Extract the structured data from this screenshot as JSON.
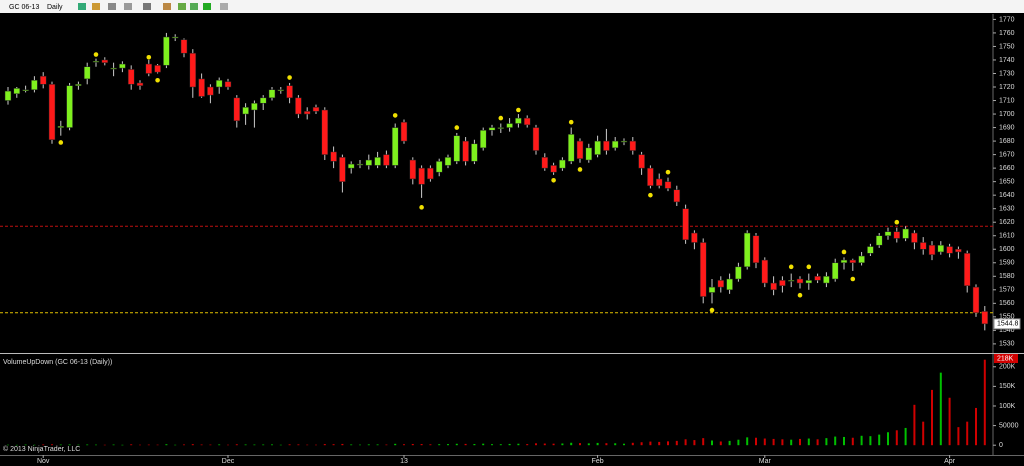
{
  "chart_data": {
    "type": "candlestick",
    "symbol": "GC 06-13",
    "interval": "Daily",
    "copyright": "© 2013 NinjaTrader, LLC",
    "categories": [
      null,
      null,
      null,
      null,
      "Nov",
      null,
      null,
      null,
      null,
      null,
      null,
      null,
      null,
      null,
      null,
      null,
      null,
      null,
      null,
      null,
      null,
      null,
      null,
      null,
      null,
      "Dec",
      null,
      null,
      null,
      null,
      null,
      null,
      null,
      null,
      null,
      null,
      null,
      null,
      null,
      null,
      null,
      null,
      null,
      null,
      null,
      "13",
      null,
      null,
      null,
      null,
      null,
      null,
      null,
      null,
      null,
      null,
      null,
      null,
      null,
      null,
      null,
      null,
      null,
      null,
      null,
      null,
      null,
      "Feb",
      null,
      null,
      null,
      null,
      null,
      null,
      null,
      null,
      null,
      null,
      null,
      null,
      null,
      null,
      null,
      null,
      null,
      null,
      "Mar",
      null,
      null,
      null,
      null,
      null,
      null,
      null,
      null,
      null,
      null,
      null,
      null,
      null,
      null,
      null,
      null,
      null,
      null,
      null,
      null,
      "Apr",
      null,
      null,
      null,
      null
    ],
    "ohlc": [
      [
        1710,
        1720,
        1707,
        1717
      ],
      [
        1715,
        1720,
        1712,
        1719
      ],
      [
        1718,
        1721,
        1716,
        1718
      ],
      [
        1718,
        1728,
        1716,
        1725
      ],
      [
        1728,
        1731,
        1719,
        1722
      ],
      [
        1722,
        1724,
        1678,
        1681
      ],
      [
        1690,
        1695,
        1684,
        1691
      ],
      [
        1690,
        1723,
        1688,
        1721
      ],
      [
        1721,
        1724,
        1718,
        1722
      ],
      [
        1726,
        1738,
        1722,
        1735
      ],
      [
        1739,
        1741,
        1735,
        1739
      ],
      [
        1740,
        1742,
        1736,
        1738
      ],
      [
        1734,
        1738,
        1728,
        1734
      ],
      [
        1734,
        1739,
        1731,
        1737
      ],
      [
        1733,
        1736,
        1718,
        1722
      ],
      [
        1723,
        1725,
        1718,
        1721
      ],
      [
        1737,
        1740,
        1728,
        1730
      ],
      [
        1736,
        1737,
        1730,
        1731
      ],
      [
        1736,
        1760,
        1734,
        1757
      ],
      [
        1757,
        1759,
        1754,
        1757
      ],
      [
        1755,
        1756,
        1742,
        1745
      ],
      [
        1745,
        1748,
        1712,
        1720
      ],
      [
        1726,
        1730,
        1712,
        1713
      ],
      [
        1720,
        1722,
        1708,
        1714
      ],
      [
        1720,
        1727,
        1715,
        1725
      ],
      [
        1724,
        1726,
        1718,
        1720
      ],
      [
        1712,
        1714,
        1690,
        1695
      ],
      [
        1700,
        1708,
        1692,
        1705
      ],
      [
        1703,
        1710,
        1690,
        1708
      ],
      [
        1708,
        1714,
        1703,
        1712
      ],
      [
        1712,
        1720,
        1710,
        1718
      ],
      [
        1718,
        1720,
        1715,
        1718
      ],
      [
        1721,
        1723,
        1708,
        1712
      ],
      [
        1712,
        1714,
        1697,
        1700
      ],
      [
        1702,
        1705,
        1696,
        1700
      ],
      [
        1705,
        1707,
        1700,
        1702
      ],
      [
        1703,
        1705,
        1666,
        1670
      ],
      [
        1672,
        1676,
        1660,
        1665
      ],
      [
        1668,
        1670,
        1642,
        1650
      ],
      [
        1660,
        1665,
        1656,
        1663
      ],
      [
        1663,
        1666,
        1660,
        1663
      ],
      [
        1662,
        1670,
        1659,
        1666
      ],
      [
        1662,
        1672,
        1660,
        1668
      ],
      [
        1670,
        1673,
        1660,
        1662
      ],
      [
        1662,
        1693,
        1660,
        1690
      ],
      [
        1694,
        1696,
        1678,
        1680
      ],
      [
        1666,
        1668,
        1648,
        1652
      ],
      [
        1660,
        1662,
        1638,
        1648
      ],
      [
        1660,
        1662,
        1650,
        1652
      ],
      [
        1657,
        1667,
        1654,
        1665
      ],
      [
        1662,
        1670,
        1660,
        1668
      ],
      [
        1665,
        1686,
        1663,
        1684
      ],
      [
        1680,
        1683,
        1662,
        1665
      ],
      [
        1665,
        1681,
        1663,
        1678
      ],
      [
        1675,
        1690,
        1673,
        1688
      ],
      [
        1688,
        1692,
        1684,
        1690
      ],
      [
        1690,
        1693,
        1686,
        1690
      ],
      [
        1690,
        1697,
        1687,
        1693
      ],
      [
        1693,
        1700,
        1690,
        1697
      ],
      [
        1697,
        1699,
        1690,
        1692
      ],
      [
        1690,
        1692,
        1670,
        1673
      ],
      [
        1668,
        1671,
        1658,
        1660
      ],
      [
        1662,
        1664,
        1655,
        1657
      ],
      [
        1660,
        1668,
        1658,
        1666
      ],
      [
        1665,
        1690,
        1663,
        1685
      ],
      [
        1680,
        1682,
        1664,
        1667
      ],
      [
        1666,
        1678,
        1664,
        1675
      ],
      [
        1670,
        1684,
        1668,
        1680
      ],
      [
        1680,
        1689,
        1670,
        1673
      ],
      [
        1675,
        1683,
        1673,
        1680
      ],
      [
        1680,
        1682,
        1677,
        1680
      ],
      [
        1680,
        1683,
        1670,
        1673
      ],
      [
        1670,
        1672,
        1655,
        1660
      ],
      [
        1660,
        1662,
        1645,
        1647
      ],
      [
        1652,
        1656,
        1645,
        1647
      ],
      [
        1650,
        1653,
        1643,
        1645
      ],
      [
        1644,
        1647,
        1632,
        1635
      ],
      [
        1630,
        1633,
        1604,
        1607
      ],
      [
        1612,
        1614,
        1600,
        1605
      ],
      [
        1605,
        1608,
        1560,
        1565
      ],
      [
        1568,
        1578,
        1560,
        1572
      ],
      [
        1577,
        1580,
        1568,
        1572
      ],
      [
        1570,
        1582,
        1567,
        1578
      ],
      [
        1578,
        1590,
        1576,
        1587
      ],
      [
        1587,
        1614,
        1585,
        1612
      ],
      [
        1610,
        1612,
        1586,
        1590
      ],
      [
        1592,
        1594,
        1572,
        1575
      ],
      [
        1575,
        1580,
        1566,
        1570
      ],
      [
        1577,
        1580,
        1568,
        1573
      ],
      [
        1577,
        1582,
        1572,
        1577
      ],
      [
        1578,
        1580,
        1571,
        1575
      ],
      [
        1575,
        1582,
        1570,
        1577
      ],
      [
        1580,
        1582,
        1575,
        1577
      ],
      [
        1575,
        1583,
        1572,
        1580
      ],
      [
        1578,
        1593,
        1576,
        1590
      ],
      [
        1590,
        1594,
        1585,
        1592
      ],
      [
        1592,
        1593,
        1584,
        1590
      ],
      [
        1590,
        1598,
        1588,
        1595
      ],
      [
        1597,
        1604,
        1595,
        1602
      ],
      [
        1603,
        1612,
        1601,
        1610
      ],
      [
        1610,
        1616,
        1607,
        1613
      ],
      [
        1613,
        1616,
        1605,
        1608
      ],
      [
        1608,
        1617,
        1606,
        1615
      ],
      [
        1612,
        1614,
        1600,
        1605
      ],
      [
        1605,
        1609,
        1596,
        1600
      ],
      [
        1603,
        1606,
        1592,
        1596
      ],
      [
        1598,
        1606,
        1596,
        1603
      ],
      [
        1602,
        1604,
        1594,
        1597
      ],
      [
        1600,
        1602,
        1593,
        1598
      ],
      [
        1597,
        1599,
        1568,
        1573
      ],
      [
        1572,
        1574,
        1550,
        1553
      ],
      [
        1554,
        1558,
        1540,
        1544.8
      ]
    ],
    "up_color": "#7ff01e",
    "down_color": "#ff1a1a",
    "ylim": [
      1524,
      1774
    ],
    "yticks": [
      1530,
      1540,
      1550,
      1560,
      1570,
      1580,
      1590,
      1600,
      1610,
      1620,
      1630,
      1640,
      1650,
      1660,
      1670,
      1680,
      1690,
      1700,
      1710,
      1720,
      1730,
      1740,
      1750,
      1760,
      1770
    ],
    "hlines": [
      {
        "value": 1617,
        "color": "#c01010"
      },
      {
        "value": 1553,
        "color": "#e0c000"
      }
    ],
    "dots": [
      null,
      null,
      null,
      null,
      null,
      null,
      1679,
      null,
      null,
      null,
      1744,
      null,
      null,
      null,
      null,
      null,
      1742,
      1725,
      null,
      null,
      null,
      null,
      null,
      null,
      null,
      null,
      null,
      null,
      null,
      null,
      null,
      null,
      1727,
      null,
      null,
      null,
      null,
      null,
      null,
      null,
      null,
      null,
      null,
      null,
      1699,
      null,
      null,
      1631,
      null,
      null,
      null,
      1690,
      null,
      null,
      null,
      null,
      1697,
      null,
      1703,
      null,
      null,
      null,
      1651,
      null,
      1694,
      1659,
      null,
      null,
      null,
      null,
      null,
      null,
      null,
      1640,
      null,
      1657,
      null,
      null,
      null,
      null,
      1555,
      null,
      null,
      null,
      null,
      null,
      null,
      null,
      null,
      1587,
      1566,
      1587,
      null,
      null,
      null,
      1598,
      1578,
      null,
      null,
      null,
      null,
      1620,
      null,
      null,
      null,
      null,
      null,
      null,
      null,
      null,
      null,
      null
    ],
    "dot_color": "#f0e000",
    "volume": {
      "type": "bar",
      "title": "VolumeUpDown (GC 06-13 (Daily))",
      "values": [
        1200,
        900,
        1500,
        1100,
        1800,
        2200,
        1600,
        1900,
        1300,
        1700,
        1400,
        1100,
        1600,
        1000,
        2100,
        1200,
        1500,
        1300,
        2400,
        1100,
        1800,
        2600,
        1700,
        1500,
        1900,
        1200,
        2300,
        1800,
        1600,
        1700,
        1900,
        1100,
        2100,
        2000,
        1300,
        1200,
        2800,
        2500,
        3200,
        1800,
        1400,
        2000,
        1900,
        1600,
        3500,
        2400,
        3100,
        2900,
        2200,
        2500,
        2800,
        3600,
        3300,
        3000,
        3900,
        2600,
        2400,
        3200,
        3700,
        2800,
        4800,
        4200,
        3900,
        4400,
        6200,
        5300,
        4600,
        5800,
        5100,
        4900,
        3800,
        6100,
        7500,
        9200,
        8400,
        9800,
        11000,
        15000,
        13000,
        18000,
        12000,
        9500,
        11000,
        14000,
        20000,
        19000,
        17000,
        16000,
        15000,
        14000,
        16000,
        17000,
        15000,
        18000,
        22000,
        21000,
        19000,
        24000,
        23000,
        27000,
        33000,
        38000,
        44000,
        103000,
        60000,
        141000,
        185000,
        121000,
        46000,
        60000,
        95000,
        218000
      ],
      "value_labels": [
        null,
        null,
        null,
        null,
        null,
        null,
        null,
        null,
        null,
        null,
        null,
        null,
        null,
        null,
        null,
        null,
        null,
        null,
        null,
        null,
        null,
        null,
        null,
        null,
        null,
        null,
        null,
        null,
        null,
        null,
        null,
        null,
        null,
        null,
        null,
        null,
        null,
        null,
        null,
        null,
        null,
        null,
        null,
        null,
        null,
        null,
        null,
        null,
        null,
        null,
        null,
        null,
        null,
        null,
        null,
        null,
        null,
        null,
        null,
        null,
        null,
        null,
        null,
        null,
        null,
        null,
        null,
        null,
        null,
        null,
        null,
        null,
        null,
        null,
        null,
        null,
        null,
        null,
        null,
        null,
        null,
        null,
        null,
        null,
        null,
        null,
        null,
        null,
        null,
        null,
        null,
        null,
        null,
        null,
        null,
        null,
        null,
        null,
        null,
        null,
        null,
        null,
        null,
        null,
        null,
        null,
        null,
        null,
        null,
        null,
        null,
        "218K"
      ],
      "up_color": "#00c000",
      "down_color": "#d00000",
      "ylim": [
        -25000,
        230000
      ],
      "yticks": [
        0,
        50000,
        {
          "value": 100000,
          "label": "100K"
        },
        {
          "value": 150000,
          "label": "150K"
        },
        {
          "value": 200000,
          "label": "200K"
        }
      ]
    }
  }
}
